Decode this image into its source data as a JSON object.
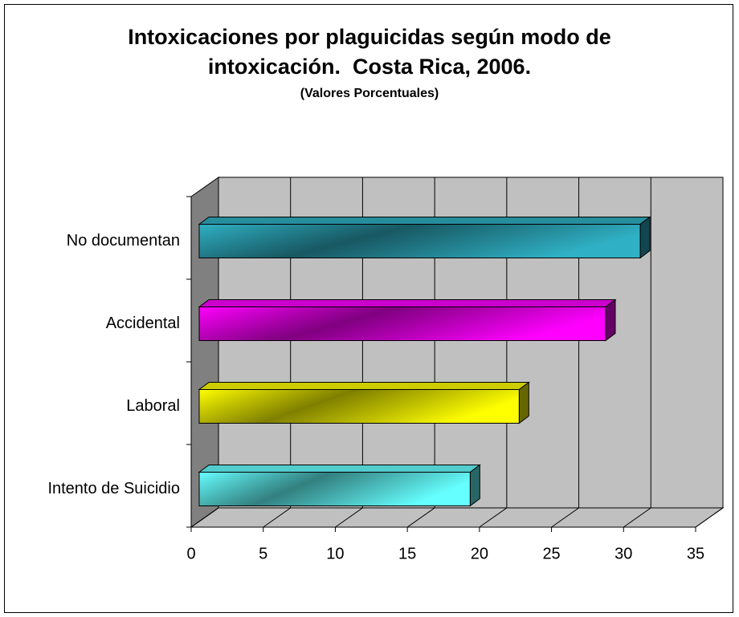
{
  "chart_data": {
    "type": "bar3d_horizontal",
    "title": "Intoxicaciones por plaguicidas según modo de intoxicación.  Costa Rica, 2006.",
    "subtitle": "(Valores Porcentuales)",
    "categories": [
      "No documentan",
      "Accidental",
      "Laboral",
      "Intento de Suicidio"
    ],
    "values": [
      30.6,
      28.2,
      22.2,
      18.8
    ],
    "colors": [
      "#2fb0c4",
      "#ff00ff",
      "#ffff00",
      "#66ffff"
    ],
    "xlim": [
      0,
      35
    ],
    "xticks": [
      0,
      5,
      10,
      15,
      20,
      25,
      30,
      35
    ],
    "grid": true
  }
}
